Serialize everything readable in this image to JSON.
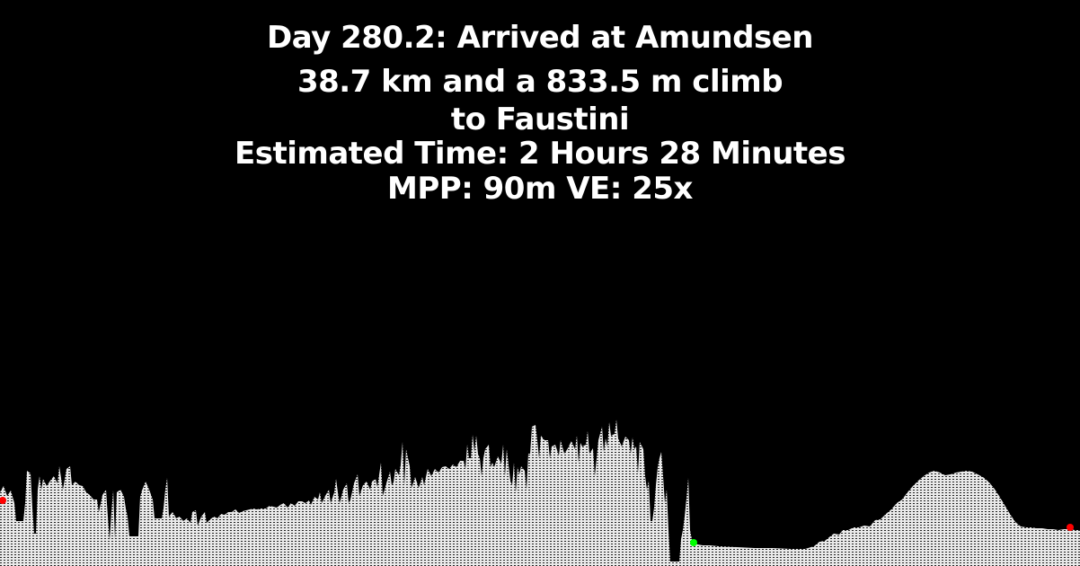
{
  "status": {
    "day_line": "Day 280.2: Arrived at Amundsen",
    "distance_line": "38.7 km and a 833.5 m climb",
    "destination_line": "to Faustini",
    "eta_line": "Estimated Time: 2 Hours 28 Minutes",
    "scale_line": "MPP: 90m VE: 25x"
  },
  "colors": {
    "background": "#000000",
    "text": "#ffffff",
    "terrain_fill": "#e8e8e8",
    "terrain_hatch": "#1a1a1a",
    "waypoint": "#ff0000",
    "current_position": "#00ff00"
  },
  "icons": {
    "waypoint": "red-dot-icon",
    "current_position": "green-dot-icon"
  }
}
